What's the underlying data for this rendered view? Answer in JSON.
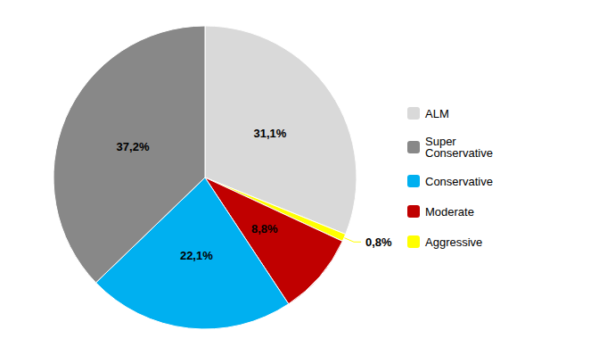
{
  "chart_data": {
    "type": "pie",
    "categories": [
      "ALM",
      "Aggressive",
      "Moderate",
      "Conservative",
      "Super\nConservative"
    ],
    "values": [
      31.1,
      0.8,
      8.8,
      22.1,
      37.2
    ],
    "value_labels": [
      "31,1%",
      "0,8%",
      "8,8%",
      "22,1%",
      "37,2%"
    ],
    "colors": [
      "#d9d9d9",
      "#ffff00",
      "#c00000",
      "#00b0f0",
      "#888888"
    ],
    "data_labels": true,
    "legend": "right",
    "legend_entries": [
      "ALM",
      "Super\nConservative",
      "Conservative",
      "Moderate",
      "Aggressive"
    ]
  }
}
